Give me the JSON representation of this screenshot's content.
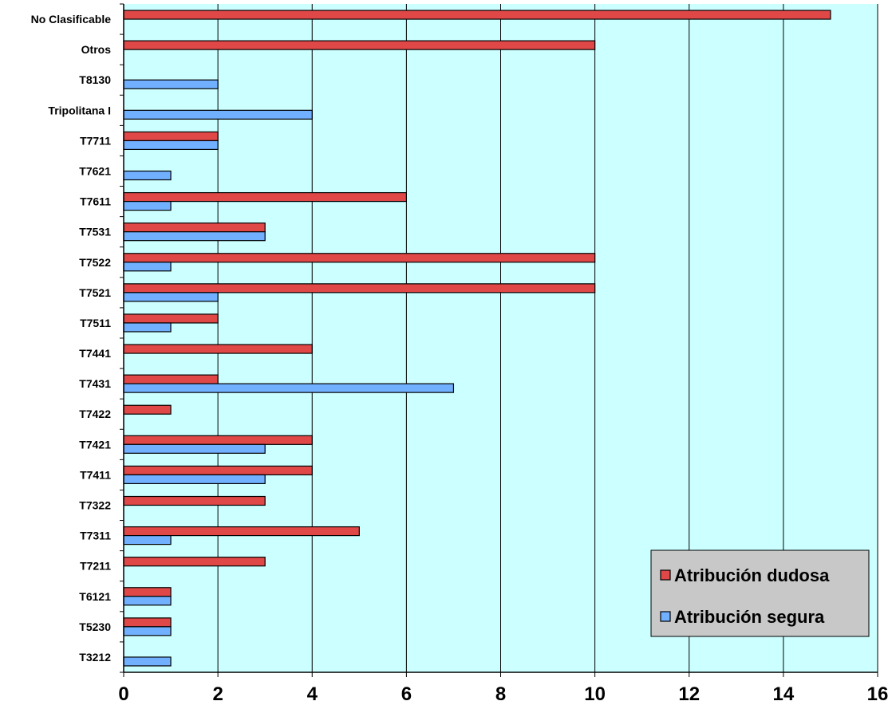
{
  "chart_data": {
    "type": "bar",
    "orientation": "horizontal",
    "title": "",
    "xlabel": "",
    "ylabel": "",
    "xlim": [
      0,
      16
    ],
    "xticks": [
      0,
      2,
      4,
      6,
      8,
      10,
      12,
      14,
      16
    ],
    "grid": "vertical",
    "plot_background": "#ccffff",
    "categories": [
      "No Clasificable",
      "Otros",
      "T8130",
      "Tripolitana I",
      "T7711",
      "T7621",
      "T7611",
      "T7531",
      "T7522",
      "T7521",
      "T7511",
      "T7441",
      "T7431",
      "T7422",
      "T7421",
      "T7411",
      "T7322",
      "T7311",
      "T7211",
      "T6121",
      "T5230",
      "T3212"
    ],
    "series": [
      {
        "name": "Atribución dudosa",
        "color": "#e04848",
        "values": [
          15,
          10,
          0,
          0,
          2,
          0,
          6,
          3,
          10,
          10,
          2,
          4,
          2,
          1,
          4,
          4,
          3,
          5,
          3,
          1,
          1,
          0
        ]
      },
      {
        "name": "Atribución segura",
        "color": "#70b0ff",
        "values": [
          0,
          0,
          2,
          4,
          2,
          1,
          1,
          3,
          1,
          2,
          1,
          0,
          7,
          0,
          3,
          3,
          0,
          1,
          0,
          1,
          1,
          1
        ]
      }
    ],
    "legend": {
      "position": "bottom-right",
      "background": "#c8c8c8"
    }
  }
}
